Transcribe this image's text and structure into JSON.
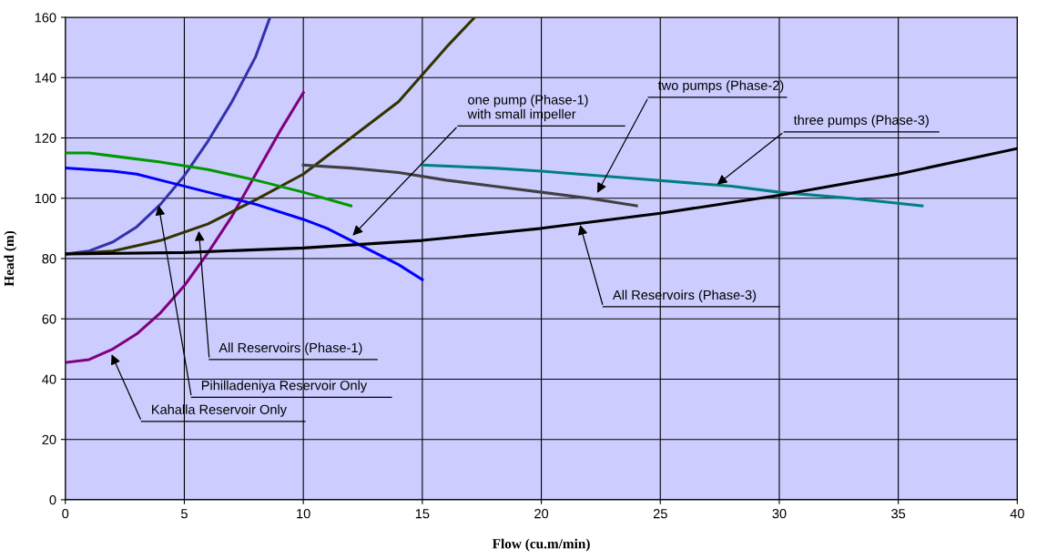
{
  "chart_data": {
    "type": "line",
    "xlabel": "Flow (cu.m/min)",
    "ylabel": "Head (m)",
    "xlim": [
      0,
      40
    ],
    "ylim": [
      0,
      160
    ],
    "xticks": [
      0,
      5,
      10,
      15,
      20,
      25,
      30,
      35,
      40
    ],
    "yticks": [
      0,
      20,
      40,
      60,
      80,
      100,
      120,
      140,
      160
    ],
    "grid": true,
    "legend": false,
    "marker": "none",
    "line_style": "solid",
    "series": [
      {
        "color": "#3333aa",
        "x": [
          0,
          1,
          2,
          3,
          4,
          5,
          6,
          7,
          8,
          8.6
        ],
        "values": [
          81.5,
          82.5,
          85.5,
          90.5,
          98,
          107.5,
          119,
          132,
          147,
          160
        ]
      },
      {
        "color": "#800080",
        "x": [
          0,
          1,
          2,
          3,
          4,
          5,
          6,
          7,
          8,
          9,
          10
        ],
        "values": [
          45.5,
          46.5,
          50,
          55,
          62,
          71,
          82,
          94,
          108,
          122,
          135
        ]
      },
      {
        "color": "#333300",
        "x": [
          0,
          2,
          4,
          6,
          8,
          10,
          12,
          14,
          15,
          16,
          17.2
        ],
        "values": [
          81.5,
          82.5,
          86,
          91.5,
          99.5,
          108,
          120,
          132,
          141,
          150,
          160
        ]
      },
      {
        "color": "#009900",
        "x": [
          0,
          1,
          2,
          4,
          6,
          8,
          10,
          12
        ],
        "values": [
          115,
          115,
          114,
          112,
          109.5,
          106,
          102,
          97.5
        ]
      },
      {
        "color": "#0000ff",
        "x": [
          0,
          2,
          3,
          4,
          6,
          8,
          10,
          11,
          12,
          13,
          14,
          15
        ],
        "values": [
          110,
          109,
          108,
          106,
          102,
          98,
          93,
          90,
          86,
          82,
          78,
          73
        ]
      },
      {
        "color": "#404040",
        "x": [
          10,
          12,
          14,
          16,
          18,
          20,
          22,
          24
        ],
        "values": [
          111,
          110,
          108.5,
          106,
          104,
          102,
          100,
          97.5
        ]
      },
      {
        "color": "#008080",
        "x": [
          15,
          18,
          20,
          24,
          28,
          30,
          33,
          36
        ],
        "values": [
          111,
          110,
          109,
          106.5,
          104,
          102,
          100,
          97.5
        ]
      },
      {
        "color": "#000000",
        "x": [
          0,
          5,
          10,
          15,
          20,
          25,
          30,
          35,
          40
        ],
        "values": [
          81.5,
          82,
          83.5,
          86,
          90,
          95,
          101,
          108,
          116.5
        ]
      }
    ],
    "annotations": [
      {
        "text": "one pump (Phase-1)\nwith small impeller",
        "x": 12,
        "y": 87
      },
      {
        "text": "two pumps (Phase-2)",
        "x": 22.3,
        "y": 101
      },
      {
        "text": "three pumps (Phase-3)",
        "x": 27.3,
        "y": 104
      },
      {
        "text": "All Reservoirs (Phase-3)",
        "x": 21.6,
        "y": 92
      },
      {
        "text": "All Reservoirs (Phase-1)",
        "x": 5.6,
        "y": 90
      },
      {
        "text": "Pihilladeniya Reservoir Only",
        "x": 3.9,
        "y": 98.5
      },
      {
        "text": "Kahalla Reservoir Only",
        "x": 1.9,
        "y": 49
      }
    ]
  }
}
